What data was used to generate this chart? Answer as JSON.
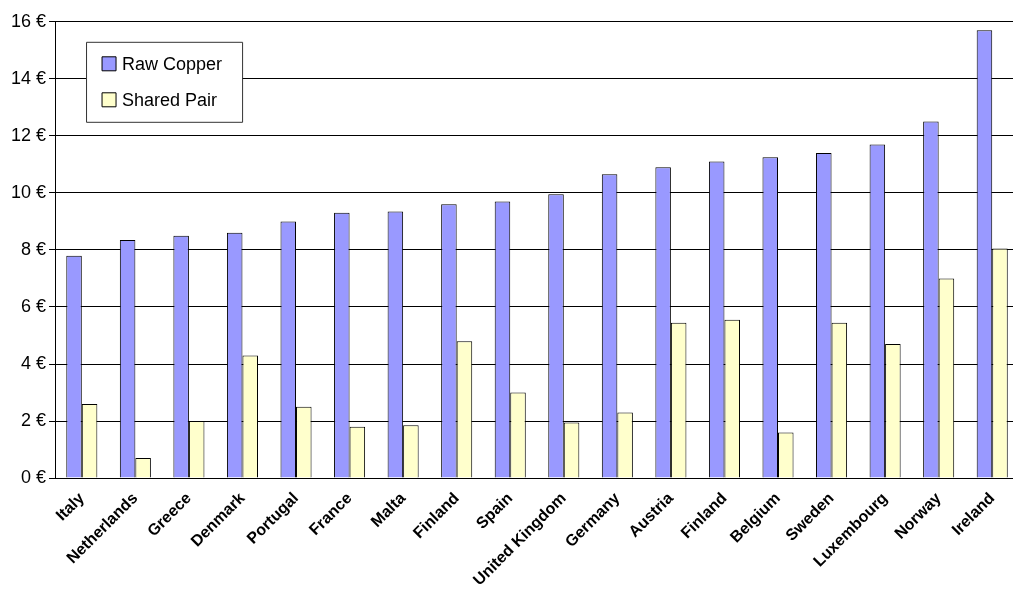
{
  "chart_data": {
    "type": "bar",
    "categories": [
      "Italy",
      "Netherlands",
      "Greece",
      "Denmark",
      "Portugal",
      "France",
      "Malta",
      "Finland",
      "Spain",
      "United Kingdom",
      "Germany",
      "Austria",
      "Finland",
      "Belgium",
      "Sweden",
      "Luxembourg",
      "Norway",
      "Ireland"
    ],
    "series": [
      {
        "name": "Raw Copper",
        "color": "#9999ff",
        "values": [
          7.8,
          8.35,
          8.5,
          8.6,
          9.0,
          9.3,
          9.35,
          9.6,
          9.7,
          9.95,
          10.65,
          10.9,
          11.1,
          11.25,
          11.4,
          11.7,
          12.5,
          15.7
        ]
      },
      {
        "name": "Shared Pair",
        "color": "#ffffcc",
        "values": [
          2.6,
          0.7,
          2.0,
          4.3,
          2.5,
          1.8,
          1.85,
          4.8,
          3.0,
          1.95,
          2.3,
          5.45,
          5.55,
          1.6,
          5.45,
          4.7,
          7.0,
          8.05
        ]
      }
    ],
    "ylim": [
      0,
      16
    ],
    "yticks": [
      {
        "value": 0,
        "label": "0 €"
      },
      {
        "value": 2,
        "label": "2 €"
      },
      {
        "value": 4,
        "label": "4 €"
      },
      {
        "value": 6,
        "label": "6 €"
      },
      {
        "value": 8,
        "label": "8 €"
      },
      {
        "value": 10,
        "label": "10 €"
      },
      {
        "value": 12,
        "label": "12 €"
      },
      {
        "value": 14,
        "label": "14 €"
      },
      {
        "value": 16,
        "label": "16 €"
      }
    ],
    "grid": "y",
    "legend": "top left"
  }
}
